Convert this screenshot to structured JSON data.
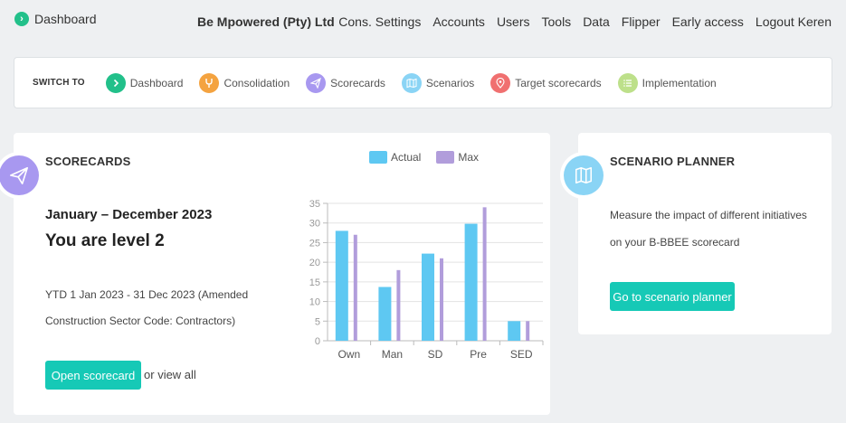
{
  "topnav": {
    "brand_label": "Dashboard",
    "company": "Be Mpowered (Pty) Ltd",
    "links": [
      "Cons. Settings",
      "Accounts",
      "Users",
      "Tools",
      "Data",
      "Flipper",
      "Early access",
      "Logout Keren"
    ]
  },
  "switchbar": {
    "title": "SWITCH TO",
    "items": [
      {
        "label": "Dashboard",
        "icon": "chevron-right-icon",
        "color": "#22c08a"
      },
      {
        "label": "Consolidation",
        "icon": "merge-icon",
        "color": "#f4a340"
      },
      {
        "label": "Scorecards",
        "icon": "paper-plane-icon",
        "color": "#a898f0"
      },
      {
        "label": "Scenarios",
        "icon": "map-icon",
        "color": "#8ad4f5"
      },
      {
        "label": "Target scorecards",
        "icon": "location-pin-icon",
        "color": "#f07070"
      },
      {
        "label": "Implementation",
        "icon": "list-icon",
        "color": "#bde08a"
      }
    ]
  },
  "scorecards": {
    "title": "SCORECARDS",
    "period": "January – December 2023",
    "level": "You are level 2",
    "ytd": "YTD 1 Jan 2023 - 31 Dec 2023 (Amended Construction Sector Code: Contractors)",
    "open_button": "Open scorecard",
    "or_text": "or",
    "view_all": "view all",
    "badge_color": "#a898f0"
  },
  "chart_data": {
    "type": "bar",
    "categories": [
      "Own",
      "Man",
      "SD",
      "Pre",
      "SED"
    ],
    "series": [
      {
        "name": "Actual",
        "color": "#5ec8f2",
        "values": [
          28,
          13.7,
          22.2,
          29.8,
          5
        ]
      },
      {
        "name": "Max",
        "color": "#b19ddb",
        "values": [
          27,
          18,
          21,
          34,
          5
        ]
      }
    ],
    "ylim": [
      0,
      35
    ],
    "yticks": [
      0,
      5,
      10,
      15,
      20,
      25,
      30,
      35
    ],
    "grid": true,
    "legend": "top"
  },
  "planner": {
    "title": "SCENARIO PLANNER",
    "text": "Measure the impact of different initiatives on your B-BBEE scorecard",
    "button": "Go to scenario planner",
    "badge_color": "#8ad4f5"
  }
}
